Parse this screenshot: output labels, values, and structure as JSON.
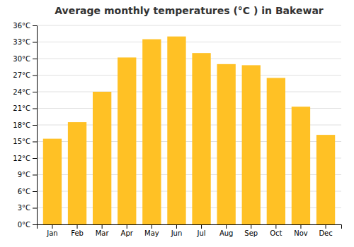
{
  "chart_data": {
    "type": "bar",
    "title": "Average monthly temperatures (°C ) in Bakewar",
    "categories": [
      "Jan",
      "Feb",
      "Mar",
      "Apr",
      "May",
      "Jun",
      "Jul",
      "Aug",
      "Sep",
      "Oct",
      "Nov",
      "Dec"
    ],
    "values": [
      15.5,
      18.5,
      24.0,
      30.2,
      33.5,
      34.0,
      31.0,
      29.0,
      28.8,
      26.5,
      21.3,
      16.2
    ],
    "color": "#FFC125",
    "ylim": [
      0,
      36
    ],
    "yticks": [
      {
        "value": 0,
        "label": "0°C"
      },
      {
        "value": 3,
        "label": "3°C"
      },
      {
        "value": 6,
        "label": "6°C"
      },
      {
        "value": 9,
        "label": "9°C"
      },
      {
        "value": 12,
        "label": "12°C"
      },
      {
        "value": 15,
        "label": "15°C"
      },
      {
        "value": 18,
        "label": "18°C"
      },
      {
        "value": 21,
        "label": "21°C"
      },
      {
        "value": 24,
        "label": "24°C"
      },
      {
        "value": 27,
        "label": "27°C"
      },
      {
        "value": 30,
        "label": "30°C"
      },
      {
        "value": 33,
        "label": "33°C"
      },
      {
        "value": 36,
        "label": "36°C"
      }
    ],
    "grid": true
  }
}
